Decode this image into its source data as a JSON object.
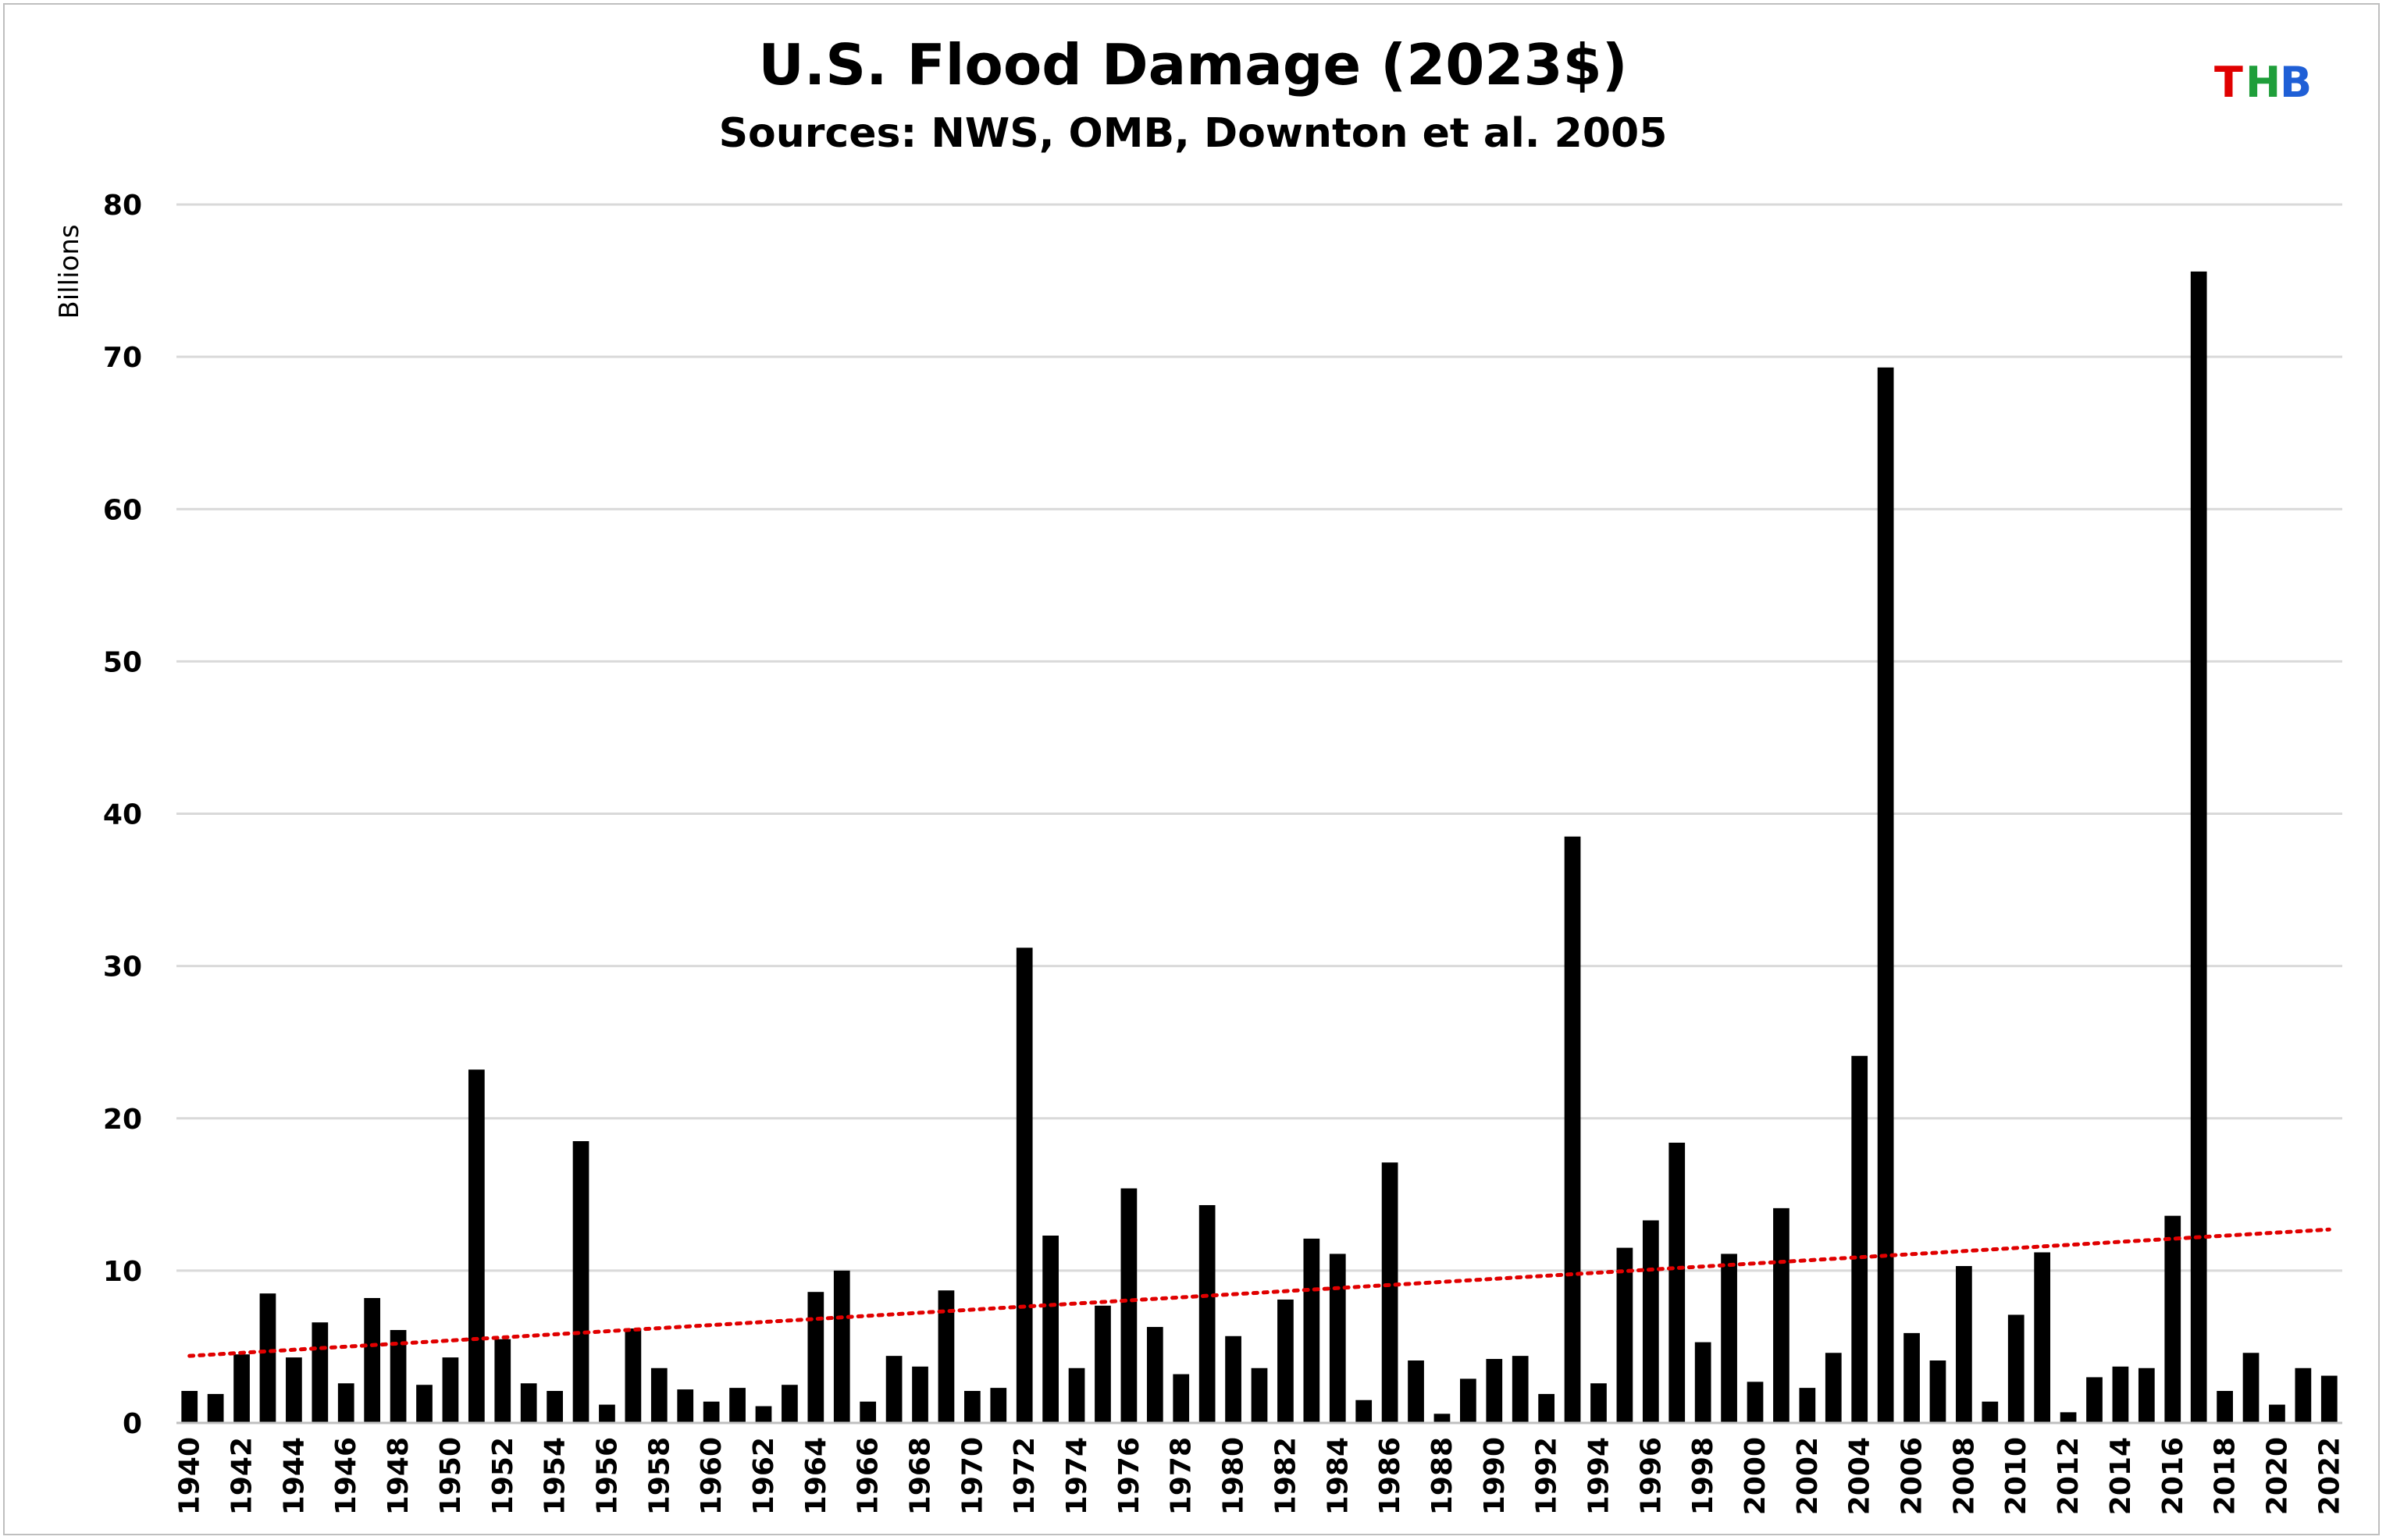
{
  "chart_data": {
    "type": "bar",
    "title": "U.S. Flood Damage (2023$)",
    "subtitle": "Sources: NWS, OMB, Downton et al. 2005",
    "ylabel": "Billions",
    "xlabel": "",
    "ylim": [
      0,
      80
    ],
    "yticks": [
      0,
      10,
      20,
      30,
      40,
      50,
      60,
      70,
      80
    ],
    "grid": true,
    "bar_color": "#000000",
    "trendline": {
      "type": "linear",
      "style": "dotted",
      "color": "#e00000",
      "start": 4.4,
      "end": 12.7
    },
    "categories": [
      "1940",
      "1941",
      "1942",
      "1943",
      "1944",
      "1945",
      "1946",
      "1947",
      "1948",
      "1949",
      "1950",
      "1951",
      "1952",
      "1953",
      "1954",
      "1955",
      "1956",
      "1957",
      "1958",
      "1959",
      "1960",
      "1961",
      "1962",
      "1963",
      "1964",
      "1965",
      "1966",
      "1967",
      "1968",
      "1969",
      "1970",
      "1971",
      "1972",
      "1973",
      "1974",
      "1975",
      "1976",
      "1977",
      "1978",
      "1979",
      "1980",
      "1981",
      "1982",
      "1983",
      "1984",
      "1985",
      "1986",
      "1987",
      "1988",
      "1989",
      "1990",
      "1991",
      "1992",
      "1993",
      "1994",
      "1995",
      "1996",
      "1997",
      "1998",
      "1999",
      "2000",
      "2001",
      "2002",
      "2003",
      "2004",
      "2005",
      "2006",
      "2007",
      "2008",
      "2009",
      "2010",
      "2011",
      "2012",
      "2013",
      "2014",
      "2015",
      "2016",
      "2017",
      "2018",
      "2019",
      "2020",
      "2021",
      "2022"
    ],
    "xtick_labels": [
      "1940",
      "1942",
      "1944",
      "1946",
      "1948",
      "1950",
      "1952",
      "1954",
      "1956",
      "1958",
      "1960",
      "1962",
      "1964",
      "1966",
      "1968",
      "1970",
      "1972",
      "1974",
      "1976",
      "1978",
      "1980",
      "1982",
      "1984",
      "1986",
      "1988",
      "1990",
      "1992",
      "1994",
      "1996",
      "1998",
      "2000",
      "2002",
      "2004",
      "2006",
      "2008",
      "2010",
      "2012",
      "2014",
      "2016",
      "2018",
      "2020",
      "2022"
    ],
    "values": [
      2.1,
      1.9,
      4.5,
      8.5,
      4.3,
      6.6,
      2.6,
      8.2,
      6.1,
      2.5,
      4.3,
      23.2,
      5.5,
      2.6,
      2.1,
      18.5,
      1.2,
      6.2,
      3.6,
      2.2,
      1.4,
      2.3,
      1.1,
      2.5,
      8.6,
      10.0,
      1.4,
      4.4,
      3.7,
      8.7,
      2.1,
      2.3,
      31.2,
      12.3,
      3.6,
      7.7,
      15.4,
      6.3,
      3.2,
      14.3,
      5.7,
      3.6,
      8.1,
      12.1,
      11.1,
      1.5,
      17.1,
      4.1,
      0.6,
      2.9,
      4.2,
      4.4,
      1.9,
      38.5,
      2.6,
      11.5,
      13.3,
      18.4,
      5.3,
      11.1,
      2.7,
      14.1,
      2.3,
      4.6,
      24.1,
      69.3,
      5.9,
      4.1,
      10.3,
      1.4,
      7.1,
      11.2,
      0.7,
      3.0,
      3.7,
      3.6,
      13.6,
      75.6,
      2.1,
      4.6,
      1.2,
      3.6,
      3.1
    ]
  },
  "logo": {
    "letters": [
      "T",
      "H",
      "B"
    ],
    "colors": [
      "#e00000",
      "#1f9e3a",
      "#1f5fd6"
    ]
  }
}
